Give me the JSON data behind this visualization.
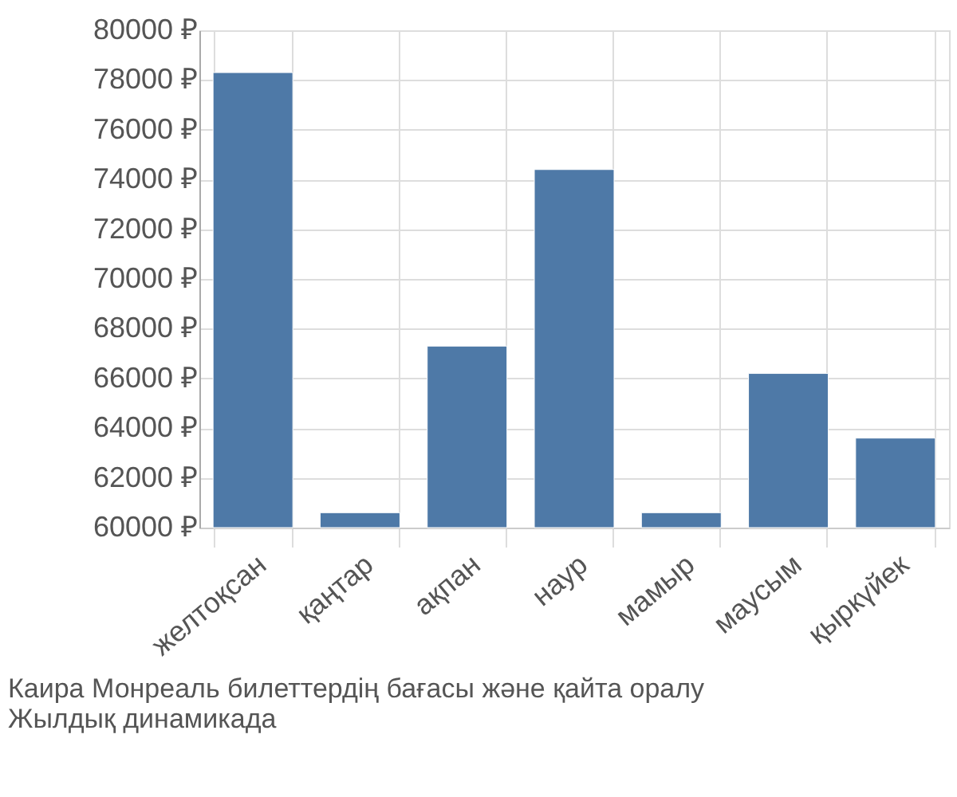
{
  "chart_data": {
    "type": "bar",
    "categories": [
      "желтоқсан",
      "қаңтар",
      "ақпан",
      "наур",
      "мамыр",
      "маусым",
      "қыркүйек"
    ],
    "values": [
      78300,
      60600,
      67300,
      74400,
      60600,
      66200,
      63600
    ],
    "color": "#4e79a7",
    "ylim": [
      60000,
      80000
    ],
    "yticks": [
      {
        "value": 60000,
        "label": "60000 ₽"
      },
      {
        "value": 62000,
        "label": "62000 ₽"
      },
      {
        "value": 64000,
        "label": "64000 ₽"
      },
      {
        "value": 66000,
        "label": "66000 ₽"
      },
      {
        "value": 68000,
        "label": "68000 ₽"
      },
      {
        "value": 70000,
        "label": "70000 ₽"
      },
      {
        "value": 72000,
        "label": "72000 ₽"
      },
      {
        "value": 74000,
        "label": "74000 ₽"
      },
      {
        "value": 76000,
        "label": "76000 ₽"
      },
      {
        "value": 78000,
        "label": "78000 ₽"
      },
      {
        "value": 80000,
        "label": "80000 ₽"
      }
    ],
    "grid": true,
    "annotations": [
      "Каира Монреаль билеттердің бағасы және қайта оралу",
      "Жылдық динамикада"
    ]
  }
}
